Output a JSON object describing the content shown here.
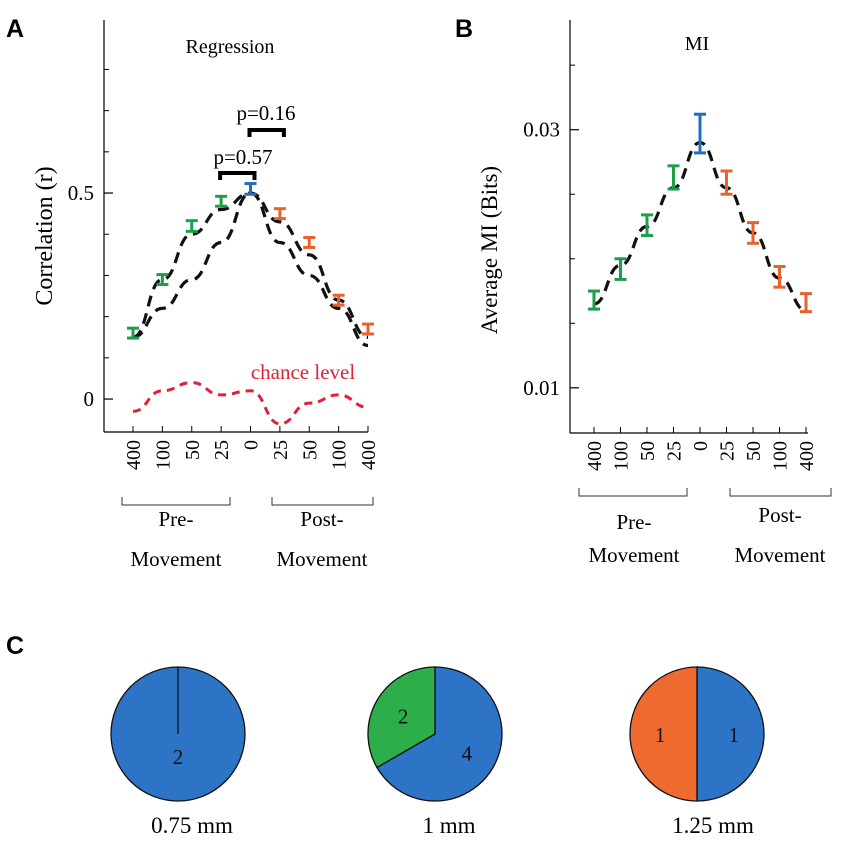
{
  "panels": {
    "A": {
      "letter": "A",
      "title": "Regression",
      "ylabel": "Correlation (r)",
      "ylim": [
        -0.08,
        0.92
      ],
      "yticks": [
        0,
        0.5
      ],
      "ytick_labels": [
        "0",
        "0.5"
      ],
      "ytick_minor": [
        0.1,
        0.2,
        0.3,
        0.4,
        0.6,
        0.7,
        0.8
      ],
      "categories": [
        "400",
        "100",
        "50",
        "25",
        "0",
        "25",
        "50",
        "100",
        "400"
      ],
      "series": [
        {
          "name": "correlation",
          "values": [
            0.16,
            0.29,
            0.42,
            0.48,
            0.51,
            0.45,
            0.38,
            0.24,
            0.17
          ],
          "err": [
            0.012,
            0.012,
            0.013,
            0.012,
            0.013,
            0.012,
            0.012,
            0.012,
            0.012
          ]
        }
      ],
      "fits": [
        {
          "name": "fit-upper",
          "values": [
            0.15,
            0.29,
            0.4,
            0.46,
            0.5,
            0.43,
            0.35,
            0.24,
            0.15
          ]
        },
        {
          "name": "fit-lower",
          "values": [
            0.15,
            0.22,
            0.29,
            0.38,
            0.5,
            0.38,
            0.3,
            0.22,
            0.13
          ]
        }
      ],
      "chance": {
        "label": "chance level",
        "values": [
          -0.03,
          0.02,
          0.04,
          0.01,
          0.02,
          -0.06,
          -0.01,
          0.01,
          -0.02
        ]
      },
      "brackets": [
        {
          "label": "p=0.57",
          "from": 3,
          "to": 4
        },
        {
          "label": "p=0.16",
          "from": 4,
          "to": 5
        }
      ],
      "groups": [
        {
          "label_1": "Pre-",
          "label_2": "Movement"
        },
        {
          "label_1": "Post-",
          "label_2": "Movement"
        }
      ]
    },
    "B": {
      "letter": "B",
      "title": "MI",
      "ylabel": "Average MI (Bits)",
      "ylim": [
        0.0065,
        0.0385
      ],
      "yticks": [
        0.01,
        0.03
      ],
      "ytick_labels": [
        "0.01",
        "0.03"
      ],
      "ytick_minor": [
        0.015,
        0.02,
        0.025,
        0.035
      ],
      "categories": [
        "400",
        "100",
        "50",
        "25",
        "0",
        "25",
        "50",
        "100",
        "400"
      ],
      "series": [
        {
          "name": "mutual-information",
          "values": [
            0.0168,
            0.0192,
            0.0226,
            0.0263,
            0.0297,
            0.0259,
            0.022,
            0.0186,
            0.0166
          ],
          "err": [
            0.0007,
            0.0008,
            0.0008,
            0.0009,
            0.0015,
            0.0009,
            0.0008,
            0.0008,
            0.0007
          ]
        }
      ],
      "fits": [
        {
          "name": "fit",
          "values": [
            0.0165,
            0.0195,
            0.0225,
            0.0255,
            0.029,
            0.0255,
            0.022,
            0.0185,
            0.016
          ]
        }
      ],
      "groups": [
        {
          "label_1": "Pre-",
          "label_2": "Movement"
        },
        {
          "label_1": "Post-",
          "label_2": "Movement"
        }
      ]
    },
    "C": {
      "letter": "C",
      "pies": [
        {
          "label": "0.75 mm",
          "slices": [
            {
              "name": "blue",
              "value": 2,
              "label": "2"
            }
          ]
        },
        {
          "label": "1 mm",
          "slices": [
            {
              "name": "blue",
              "value": 4,
              "label": "4"
            },
            {
              "name": "green",
              "value": 2,
              "label": "2"
            }
          ]
        },
        {
          "label": "1.25 mm",
          "slices": [
            {
              "name": "blue",
              "value": 1,
              "label": "1"
            },
            {
              "name": "orange",
              "value": 1,
              "label": "1"
            }
          ]
        }
      ]
    }
  },
  "chart_data": [
    {
      "type": "line",
      "title": "Regression",
      "xlabel": "",
      "ylabel": "Correlation (r)",
      "categories": [
        "400",
        "100",
        "50",
        "25",
        "0",
        "25",
        "50",
        "100",
        "400"
      ],
      "series": [
        {
          "name": "correlation",
          "values": [
            0.16,
            0.29,
            0.42,
            0.48,
            0.51,
            0.45,
            0.38,
            0.24,
            0.17
          ]
        },
        {
          "name": "chance level",
          "values": [
            -0.03,
            0.02,
            0.04,
            0.01,
            0.02,
            -0.06,
            -0.01,
            0.01,
            -0.02
          ]
        }
      ],
      "ylim": [
        -0.08,
        0.92
      ],
      "annotations": [
        "p=0.57",
        "p=0.16",
        "chance level"
      ]
    },
    {
      "type": "line",
      "title": "MI",
      "xlabel": "",
      "ylabel": "Average MI (Bits)",
      "categories": [
        "400",
        "100",
        "50",
        "25",
        "0",
        "25",
        "50",
        "100",
        "400"
      ],
      "series": [
        {
          "name": "mutual information",
          "values": [
            0.0168,
            0.0192,
            0.0226,
            0.0263,
            0.0297,
            0.0259,
            0.022,
            0.0186,
            0.0166
          ]
        }
      ],
      "ylim": [
        0.0065,
        0.0385
      ]
    },
    {
      "type": "pie",
      "title": "0.75 mm",
      "categories": [
        "blue"
      ],
      "values": [
        2
      ]
    },
    {
      "type": "pie",
      "title": "1 mm",
      "categories": [
        "blue",
        "green"
      ],
      "values": [
        4,
        2
      ]
    },
    {
      "type": "pie",
      "title": "1.25 mm",
      "categories": [
        "blue",
        "orange"
      ],
      "values": [
        1,
        1
      ]
    }
  ],
  "colors": {
    "pre": "#1f9e4a",
    "center": "#1f6fbf",
    "post": "#e8622c",
    "chance": "#e0213a",
    "fit": "#111111",
    "blue": "#2e74c6",
    "green": "#2eae4a",
    "orange": "#ef6a2e"
  }
}
